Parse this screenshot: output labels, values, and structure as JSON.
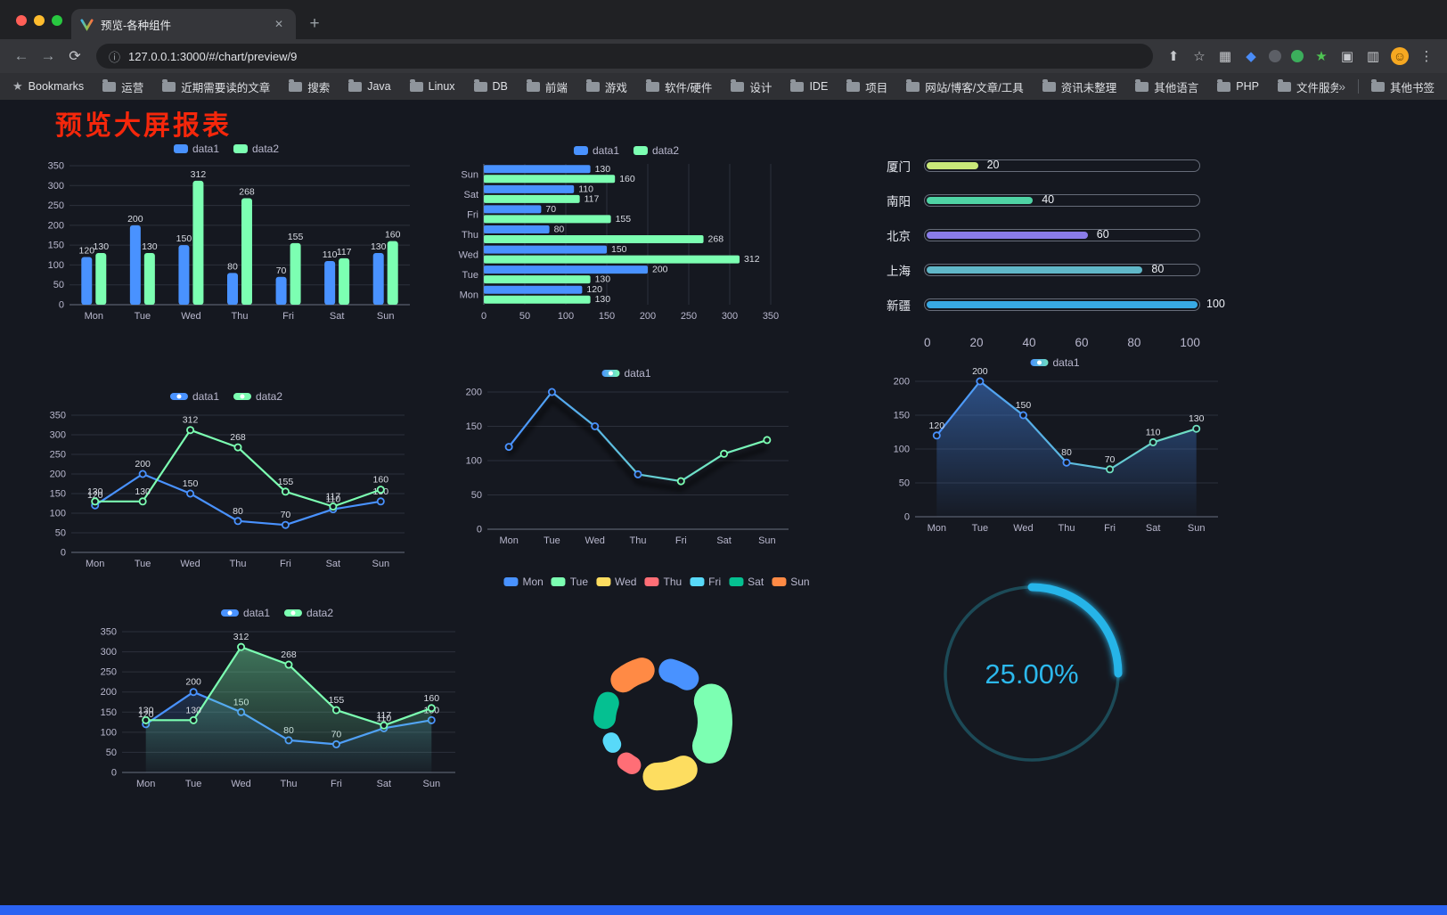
{
  "browser": {
    "tab_title": "预览-各种组件",
    "url": "127.0.0.1:3000/#/chart/preview/9",
    "bookmarks_label": "Bookmarks",
    "bookmarks": [
      "运营",
      "近期需要读的文章",
      "搜索",
      "Java",
      "Linux",
      "DB",
      "前端",
      "游戏",
      "软件/硬件",
      "设计",
      "IDE",
      "项目",
      "网站/博客/文章/工具",
      "资讯未整理",
      "其他语言",
      "PHP",
      "文件服务器"
    ],
    "other_bookmarks": "其他书签",
    "icons": {
      "back": "←",
      "forward": "→",
      "reload": "⟳",
      "info": "ⓘ",
      "share": "⬆",
      "star": "☆",
      "menu": "⋮",
      "close": "✕",
      "new_tab": "+",
      "overflow": "»",
      "bookmarks_star": "★",
      "grid_ext": "▦",
      "panel": "▥",
      "puzzle": "▣",
      "ext_star": "★",
      "avatar_face": "☺"
    }
  },
  "page": {
    "title": "预览大屏报表",
    "title_color": "#f5270b",
    "background": "#151820",
    "footer_color": "#2b63f3"
  },
  "chart_data": [
    {
      "type": "bar",
      "categories": [
        "Mon",
        "Tue",
        "Wed",
        "Thu",
        "Fri",
        "Sat",
        "Sun"
      ],
      "series": [
        {
          "name": "data1",
          "color": "#4992ff",
          "values": [
            120,
            200,
            150,
            80,
            70,
            110,
            130
          ]
        },
        {
          "name": "data2",
          "color": "#7cffb2",
          "values": [
            130,
            130,
            312,
            268,
            155,
            117,
            160
          ]
        }
      ],
      "ylim": [
        0,
        350
      ],
      "ystep": 50
    },
    {
      "type": "hbar",
      "categories": [
        "Mon",
        "Tue",
        "Wed",
        "Thu",
        "Fri",
        "Sat",
        "Sun"
      ],
      "series": [
        {
          "name": "data1",
          "color": "#4992ff",
          "values": [
            120,
            200,
            150,
            80,
            70,
            110,
            130
          ]
        },
        {
          "name": "data2",
          "color": "#7cffb2",
          "values": [
            130,
            130,
            312,
            268,
            155,
            117,
            160
          ]
        }
      ],
      "xlim": [
        0,
        350
      ],
      "xstep": 50
    },
    {
      "type": "progress",
      "rows": [
        {
          "label": "厦门",
          "value": 20,
          "color": "#c9e879"
        },
        {
          "label": "南阳",
          "value": 40,
          "color": "#4fd3a4"
        },
        {
          "label": "北京",
          "value": 60,
          "color": "#8a7ce8"
        },
        {
          "label": "上海",
          "value": 80,
          "color": "#60b7c8"
        },
        {
          "label": "新疆",
          "value": 100,
          "color": "#38a9e4"
        }
      ],
      "max": 100,
      "ticks": [
        0,
        20,
        40,
        60,
        80,
        100
      ]
    },
    {
      "type": "line",
      "categories": [
        "Mon",
        "Tue",
        "Wed",
        "Thu",
        "Fri",
        "Sat",
        "Sun"
      ],
      "series": [
        {
          "name": "data1",
          "color": "#4992ff",
          "values": [
            120,
            200,
            150,
            80,
            70,
            110,
            130
          ],
          "labels": true
        },
        {
          "name": "data2",
          "color": "#7cffb2",
          "values": [
            130,
            130,
            312,
            268,
            155,
            117,
            160
          ],
          "labels": true
        }
      ],
      "ylim": [
        0,
        350
      ],
      "ystep": 50
    },
    {
      "type": "line",
      "categories": [
        "Mon",
        "Tue",
        "Wed",
        "Thu",
        "Fri",
        "Sat",
        "Sun"
      ],
      "series": [
        {
          "name": "data1",
          "gradient": [
            "#4992ff",
            "#7cffb2"
          ],
          "values": [
            120,
            200,
            150,
            80,
            70,
            110,
            130
          ],
          "labels": false,
          "shadow": true
        }
      ],
      "ylim": [
        0,
        200
      ],
      "ystep": 50
    },
    {
      "type": "line",
      "categories": [
        "Mon",
        "Tue",
        "Wed",
        "Thu",
        "Fri",
        "Sat",
        "Sun"
      ],
      "series": [
        {
          "name": "data1",
          "gradient": [
            "#4992ff",
            "#6fe0c0"
          ],
          "values": [
            120,
            200,
            150,
            80,
            70,
            110,
            130
          ],
          "labels": true,
          "area": 0.45
        }
      ],
      "ylim": [
        0,
        200
      ],
      "ystep": 50
    },
    {
      "type": "line",
      "categories": [
        "Mon",
        "Tue",
        "Wed",
        "Thu",
        "Fri",
        "Sat",
        "Sun"
      ],
      "series": [
        {
          "name": "data1",
          "color": "#4992ff",
          "values": [
            120,
            200,
            150,
            80,
            70,
            110,
            130
          ],
          "labels": true,
          "area": 0.18
        },
        {
          "name": "data2",
          "color": "#7cffb2",
          "values": [
            130,
            130,
            312,
            268,
            155,
            117,
            160
          ],
          "labels": true,
          "area": 0.4
        }
      ],
      "ylim": [
        0,
        350
      ],
      "ystep": 50
    },
    {
      "type": "donut",
      "categories": [
        "Mon",
        "Tue",
        "Wed",
        "Thu",
        "Fri",
        "Sat",
        "Sun"
      ],
      "values": [
        120,
        200,
        150,
        80,
        70,
        110,
        130
      ],
      "colors": [
        "#4992ff",
        "#7cffb2",
        "#fddd60",
        "#ff6e76",
        "#58d9f9",
        "#05c091",
        "#ff8a45"
      ]
    },
    {
      "type": "gauge",
      "value": 25,
      "label": "25.00%",
      "color": "#28b4e8",
      "track_color": "#1c4a57"
    }
  ]
}
